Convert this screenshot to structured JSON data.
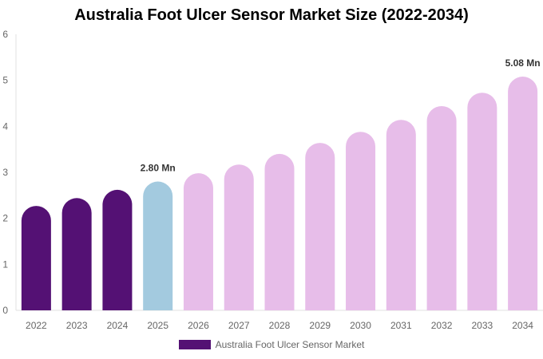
{
  "chart_data": {
    "type": "bar",
    "title": "Australia Foot Ulcer Sensor Market Size (2022-2034)",
    "categories": [
      "2022",
      "2023",
      "2024",
      "2025",
      "2026",
      "2027",
      "2028",
      "2029",
      "2030",
      "2031",
      "2032",
      "2033",
      "2034"
    ],
    "series": [
      {
        "name": "Australia Foot Ulcer Sensor Market",
        "values": [
          2.27,
          2.44,
          2.62,
          2.8,
          2.98,
          3.17,
          3.4,
          3.64,
          3.88,
          4.14,
          4.44,
          4.73,
          5.08
        ]
      }
    ],
    "data_labels": [
      {
        "category": "2025",
        "text": "2.80 Mn"
      },
      {
        "category": "2034",
        "text": "5.08 Mn"
      }
    ],
    "ylim": [
      0,
      6
    ],
    "yticks": [
      0,
      1,
      2,
      3,
      4,
      5,
      6
    ],
    "grid": false,
    "legend": "bottom",
    "colors": {
      "historical": "#541174",
      "base_year": "#a3cadf",
      "forecast": "#e7bde9"
    },
    "color_by_category": [
      "historical",
      "historical",
      "historical",
      "base_year",
      "forecast",
      "forecast",
      "forecast",
      "forecast",
      "forecast",
      "forecast",
      "forecast",
      "forecast",
      "forecast"
    ]
  }
}
